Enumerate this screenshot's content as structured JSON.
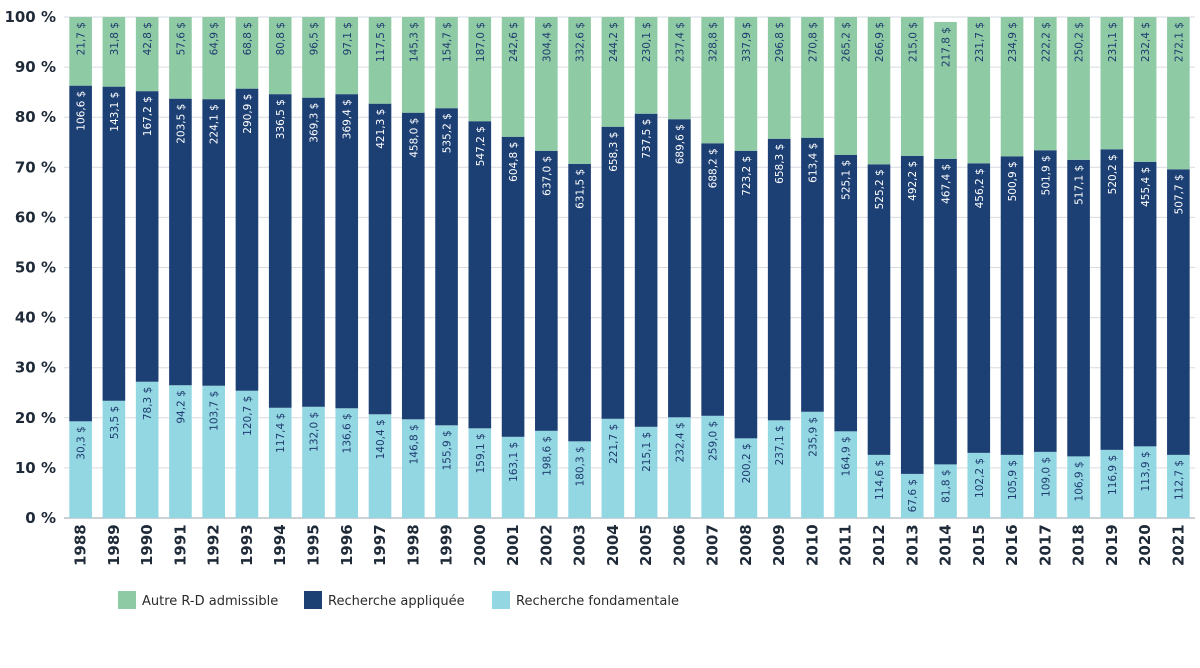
{
  "chart_data": {
    "type": "bar",
    "stacked": "percent",
    "categories": [
      "1988",
      "1989",
      "1990",
      "1991",
      "1992",
      "1993",
      "1994",
      "1995",
      "1996",
      "1997",
      "1998",
      "1999",
      "2000",
      "2001",
      "2002",
      "2003",
      "2004",
      "2005",
      "2006",
      "2007",
      "2008",
      "2009",
      "2010",
      "2011",
      "2012",
      "2013",
      "2014",
      "2015",
      "2016",
      "2017",
      "2018",
      "2019",
      "2020",
      "2021"
    ],
    "ylim": [
      0,
      100
    ],
    "yticks": [
      0,
      10,
      20,
      30,
      40,
      50,
      60,
      70,
      80,
      90,
      100
    ],
    "ytick_labels": [
      "0 %",
      "10 %",
      "20 %",
      "30 %",
      "40 %",
      "50 %",
      "60 %",
      "70 %",
      "80 %",
      "90 %",
      "100 %"
    ],
    "grid": true,
    "legend_position": "bottom-center",
    "series": [
      {
        "name": "Recherche fondamentale",
        "color": "#93d7e3",
        "label_color": "#1f3a6e",
        "percent": [
          19.3,
          23.4,
          27.2,
          26.5,
          26.4,
          25.4,
          22.0,
          22.2,
          21.9,
          20.7,
          19.7,
          18.5,
          17.9,
          16.2,
          17.4,
          15.3,
          19.8,
          18.2,
          20.1,
          20.4,
          15.9,
          19.5,
          21.2,
          17.3,
          12.6,
          8.8,
          10.7,
          13.0,
          12.6,
          13.2,
          12.3,
          13.6,
          14.3,
          12.6
        ],
        "labels": [
          "30,3 $",
          "53,5 $",
          "78,3 $",
          "94,2 $",
          "103,7 $",
          "120,7 $",
          "117,4 $",
          "132,0 $",
          "136,6 $",
          "140,4 $",
          "146,8 $",
          "155,9 $",
          "159,1 $",
          "163,1 $",
          "198,6 $",
          "180,3 $",
          "221,7 $",
          "215,1 $",
          "232,4 $",
          "259,0 $",
          "200,2 $",
          "237,1 $",
          "235,9 $",
          "164,9 $",
          "114,6 $",
          "67,6 $",
          "81,8 $",
          "102,2 $",
          "105,9 $",
          "109,0 $",
          "106,9 $",
          "116,9 $",
          "113,9 $",
          "112,7 $"
        ]
      },
      {
        "name": "Recherche appliquée",
        "color": "#1c3f74",
        "label_color": "#ffffff",
        "percent": [
          67.0,
          62.7,
          58.0,
          57.2,
          57.2,
          60.3,
          62.6,
          61.7,
          62.7,
          62.0,
          61.2,
          63.3,
          61.3,
          59.9,
          55.9,
          55.4,
          58.3,
          62.5,
          59.5,
          54.4,
          57.4,
          56.2,
          54.7,
          55.2,
          58.0,
          63.5,
          61.0,
          57.8,
          59.6,
          60.2,
          59.2,
          60.0,
          56.8,
          57.0
        ],
        "labels": [
          "106,6 $",
          "143,1 $",
          "167,2 $",
          "203,5 $",
          "224,1 $",
          "290,9 $",
          "336,5 $",
          "369,3 $",
          "369,4 $",
          "421,3 $",
          "458,0 $",
          "535,2 $",
          "547,2 $",
          "604,8 $",
          "637,0 $",
          "631,5 $",
          "658,3 $",
          "737,5 $",
          "689,6 $",
          "688,2 $",
          "723,2 $",
          "658,3 $",
          "613,4 $",
          "525,1 $",
          "525,2 $",
          "492,2 $",
          "467,4 $",
          "456,2 $",
          "500,9 $",
          "501,9 $",
          "517,1 $",
          "520,2 $",
          "455,4 $",
          "507,7 $"
        ]
      },
      {
        "name": "Autre R-D admissible",
        "color": "#8ecba5",
        "label_color": "#1f3a6e",
        "percent": [
          13.7,
          13.9,
          14.8,
          16.3,
          16.4,
          14.3,
          15.4,
          16.1,
          15.4,
          17.3,
          19.1,
          18.2,
          20.8,
          23.9,
          26.7,
          29.3,
          21.9,
          19.3,
          20.4,
          25.2,
          26.7,
          24.3,
          24.1,
          27.5,
          29.4,
          27.7,
          27.3,
          29.2,
          27.8,
          26.6,
          28.5,
          26.4,
          28.9,
          30.4
        ],
        "labels": [
          "21,7 $",
          "31,8 $",
          "42,8 $",
          "57,6 $",
          "64,9 $",
          "68,8 $",
          "80,8 $",
          "96,5 $",
          "97,1 $",
          "117,5 $",
          "145,3 $",
          "154,7 $",
          "187,0 $",
          "242,6 $",
          "304,4 $",
          "332,6 $",
          "244,2 $",
          "230,1 $",
          "237,4 $",
          "328,8 $",
          "337,9 $",
          "296,8 $",
          "270,8 $",
          "265,2 $",
          "266,9 $",
          "215,0 $",
          "217,8 $",
          "231,7 $",
          "234,9 $",
          "222,2 $",
          "250,2 $",
          "231,1 $",
          "232,4 $",
          "272,1 $"
        ]
      }
    ],
    "legend": [
      "Autre R-D admissible",
      "Recherche appliquée",
      "Recherche fondamentale"
    ]
  }
}
